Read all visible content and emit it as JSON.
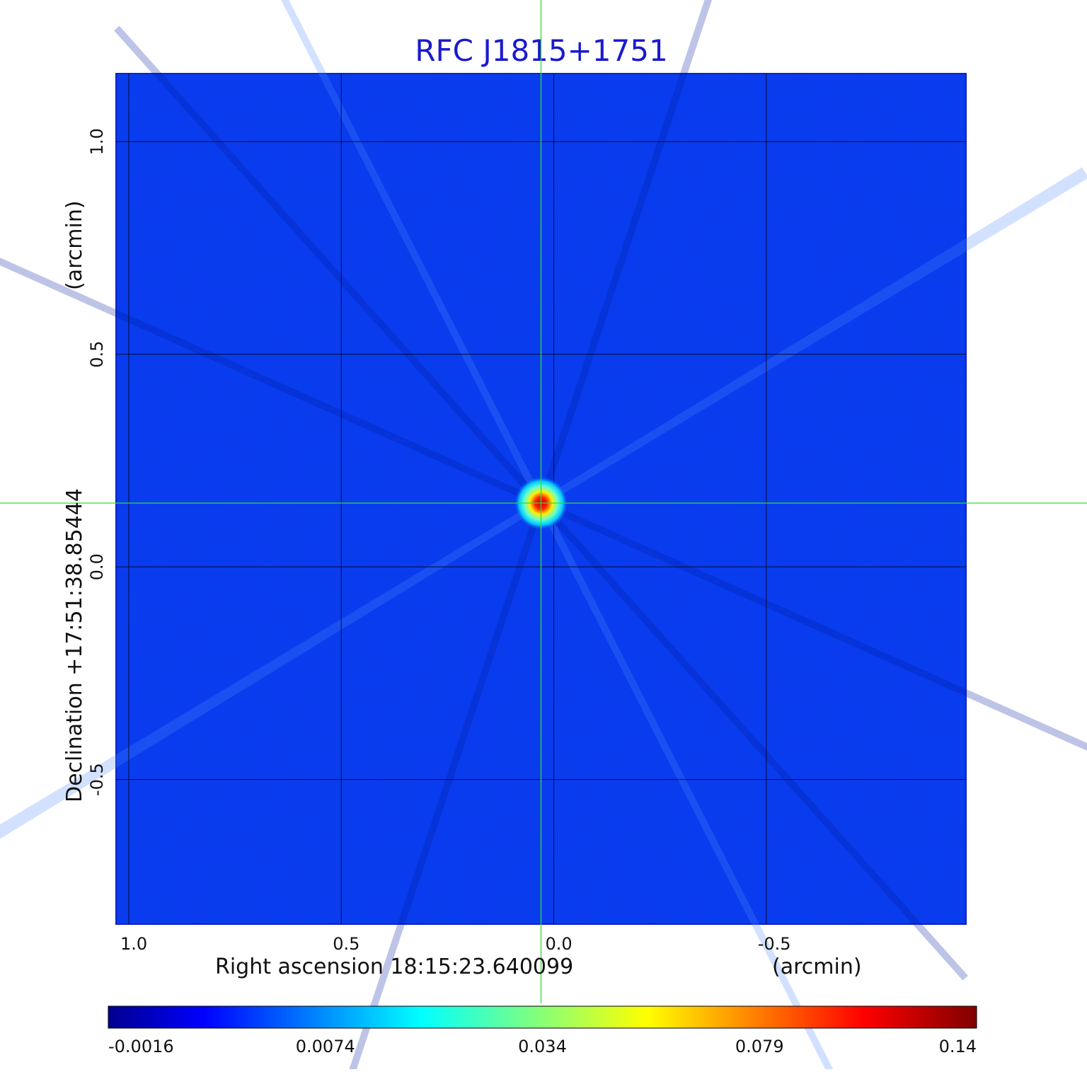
{
  "chart_data": {
    "type": "heatmap",
    "title": "RFC J1815+1751",
    "xlabel": "Right ascension  18:15:23.640099",
    "xunit": "(arcmin)",
    "ylabel": "Declination  +17:51:38.85444",
    "yunit": "(arcmin)",
    "xlim": [
      1.03,
      -0.97
    ],
    "ylim": [
      -0.84,
      1.16
    ],
    "xticks": [
      {
        "value": 1.0,
        "label": "1.0"
      },
      {
        "value": 0.5,
        "label": "0.5"
      },
      {
        "value": 0.0,
        "label": "0.0"
      },
      {
        "value": -0.5,
        "label": "-0.5"
      }
    ],
    "yticks": [
      {
        "value": 1.0,
        "label": "1.0"
      },
      {
        "value": 0.5,
        "label": "0.5"
      },
      {
        "value": 0.0,
        "label": "0.0"
      },
      {
        "value": -0.5,
        "label": "-0.5"
      }
    ],
    "grid": true,
    "crosshair": {
      "x": 0.03,
      "y": 0.15
    },
    "source_peak": {
      "x": 0.03,
      "y": 0.15,
      "value": 0.14
    },
    "colorbar": {
      "ticks": [
        "-0.0016",
        "0.0074",
        "0.034",
        "0.079",
        "0.14"
      ],
      "colormap": "jet"
    },
    "colors": {
      "title": "#1a1acc",
      "background_map": "#0a3cf0",
      "grid": "#000000",
      "crosshair": "#33dd33"
    }
  }
}
